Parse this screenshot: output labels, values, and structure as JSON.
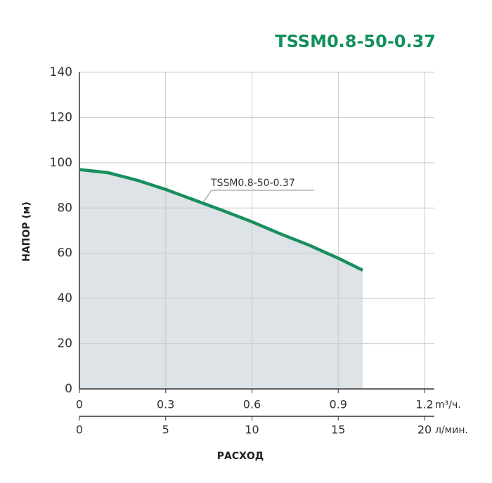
{
  "chart_data": {
    "type": "area-line",
    "title": "TSSM0.8-50-0.37",
    "y_label": "НАПОР (м)",
    "x_label": "РАСХОД",
    "x": [
      0,
      0.1,
      0.2,
      0.3,
      0.4,
      0.5,
      0.6,
      0.7,
      0.8,
      0.9,
      0.985
    ],
    "series": [
      {
        "name": "TSSM0.8-50-0.37",
        "color": "#1a8f5e",
        "fill": "#dde3e6",
        "values": [
          97,
          95.6,
          92.3,
          88.2,
          83.5,
          78.8,
          73.9,
          68.5,
          63.5,
          57.8,
          52.5
        ]
      }
    ],
    "xlim": [
      0,
      1.2
    ],
    "xticks": [
      0,
      0.3,
      0.6,
      0.9,
      1.2
    ],
    "x_unit": "m³/ч.",
    "x2lim": [
      0,
      20
    ],
    "x2ticks": [
      0,
      5,
      10,
      15,
      20
    ],
    "x2_unit": "л/мин.",
    "ylim": [
      0,
      140
    ],
    "yticks": [
      0,
      20,
      40,
      60,
      80,
      100,
      120,
      140
    ],
    "grid": true
  }
}
